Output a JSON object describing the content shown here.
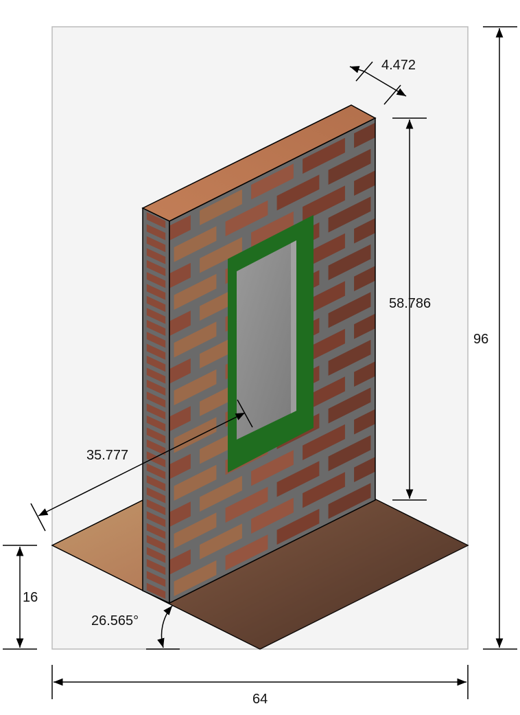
{
  "colors": {
    "sheet": "#f4f4f4",
    "sheet_border": "#bbbbbb",
    "mortar": "#6f6f6f",
    "brick_a": "#8a4a38",
    "brick_b": "#7a3e2e",
    "brick_c": "#9b6a4a",
    "brick_top": "#b8744f",
    "window_frame": "#1f6d1f",
    "window_glass": "#8e8e8e",
    "floor_light": "#c99a6a",
    "floor_dark": "#3e2a20",
    "dim_line": "#000000"
  },
  "dimensions": {
    "thickness": "4.472",
    "wall_height": "58.786",
    "total_height": "96",
    "wall_length": "35.777",
    "base_offset": "16",
    "angle": "26.565°",
    "total_width": "64"
  },
  "icons": {
    "arrow": "arrowhead"
  }
}
